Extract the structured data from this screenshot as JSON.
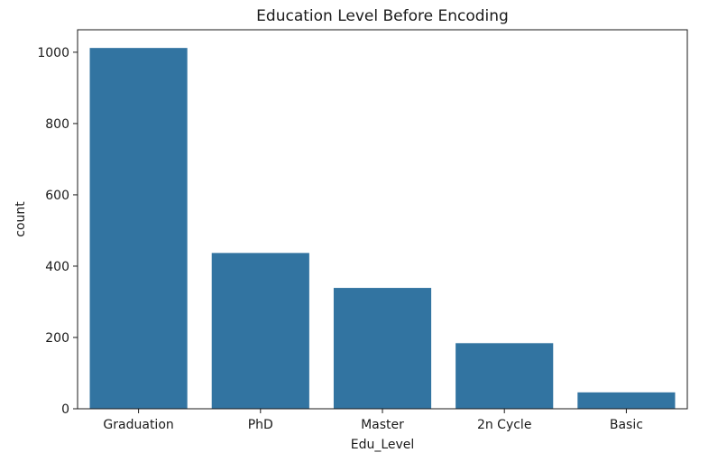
{
  "chart_data": {
    "type": "bar",
    "title": "Education Level Before Encoding",
    "xlabel": "Edu_Level",
    "ylabel": "count",
    "categories": [
      "Graduation",
      "PhD",
      "Master",
      "2n Cycle",
      "Basic"
    ],
    "values": [
      1012,
      437,
      339,
      184,
      46
    ],
    "ylim": [
      0,
      1063
    ],
    "yticks": [
      0,
      200,
      400,
      600,
      800,
      1000
    ],
    "bar_color": "#3274a1",
    "grid": false,
    "legend": "none"
  }
}
